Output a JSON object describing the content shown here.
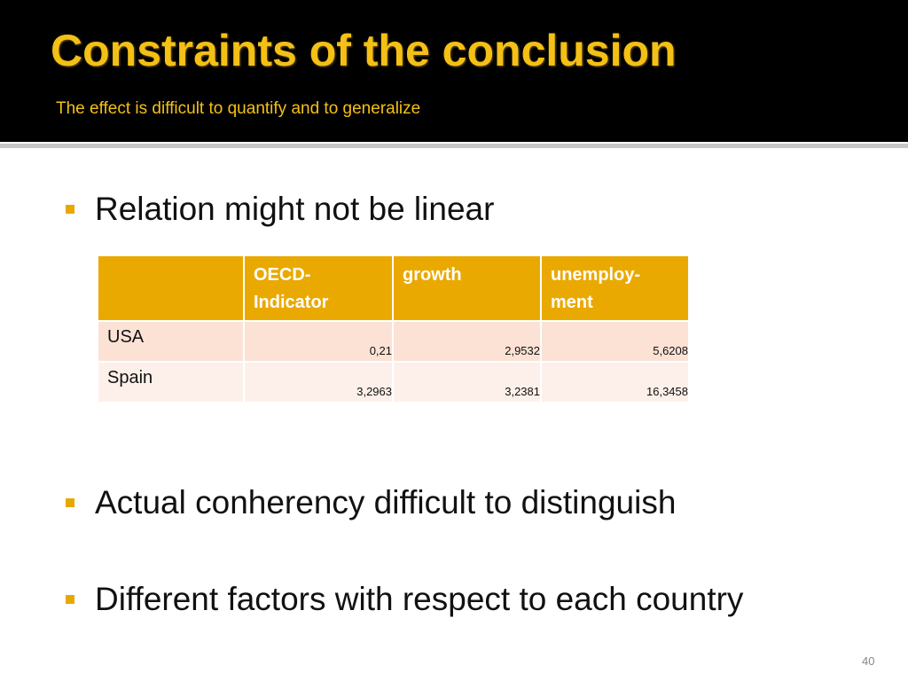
{
  "header": {
    "title": "Constraints of the conclusion",
    "subtitle": "The effect is difficult to quantify and to generalize"
  },
  "bullets": [
    "Relation might not be linear",
    "Actual conherency difficult to distinguish",
    "Different factors with respect to each country"
  ],
  "table": {
    "columns": [
      "",
      "OECD-\nIndicator",
      "growth",
      "unemploy-\nment"
    ],
    "rows": [
      [
        "USA",
        "0,21",
        "2,9532",
        "5,6208"
      ],
      [
        "Spain",
        "3,2963",
        "3,2381",
        "16,3458"
      ]
    ]
  },
  "page_number": "40"
}
